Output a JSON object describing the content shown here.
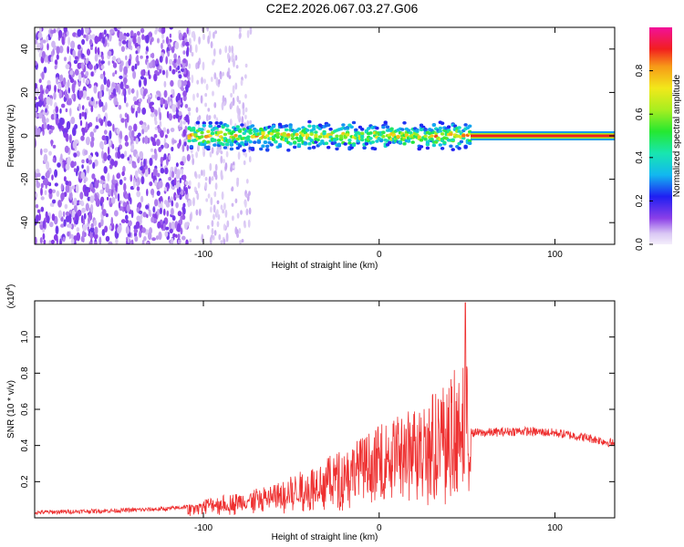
{
  "title": "C2E2.2026.067.03.27.G06",
  "chart_data": [
    {
      "type": "heatmap",
      "xlabel": "Height of straight line (km)",
      "ylabel": "Frequency (Hz)",
      "xlim": [
        -196,
        134
      ],
      "ylim": [
        -50,
        50
      ],
      "xticks": [
        -100,
        0,
        100
      ],
      "yticks": [
        -40,
        -20,
        0,
        20,
        40
      ],
      "xtick_labels": [
        "-100",
        "0",
        "100"
      ],
      "ytick_labels": [
        "-40",
        "-20",
        "0",
        "20",
        "40"
      ],
      "colorbar": {
        "label": "Normalized spectral amplitude",
        "range": [
          0.0,
          1.0
        ],
        "ticks": [
          0.0,
          0.2,
          0.4,
          0.6,
          0.8
        ],
        "tick_labels": [
          "0.0",
          "0.2",
          "0.4",
          "0.6",
          "0.8"
        ],
        "colormap": "rainbow (violet-blue-cyan-green-yellow-red-magenta)"
      },
      "features": [
        {
          "x_range": [
            -196,
            -108
          ],
          "description_value": "scattered noise up to ~0.15 across all frequencies"
        },
        {
          "x_range": [
            -108,
            52
          ],
          "frequency_center": 0,
          "frequency_halfwidth": 5,
          "amplitude_range": [
            0.2,
            0.9
          ]
        },
        {
          "x_range": [
            52,
            134
          ],
          "frequency_center": 0,
          "amplitude": 0.9
        }
      ],
      "grid": false
    },
    {
      "type": "line",
      "xlabel": "Height of straight line (km)",
      "ylabel": "SNR (10 * v/v)",
      "multiplier_label": "(x10",
      "multiplier_exponent": "4",
      "multiplier_close": ")",
      "xlim": [
        -196,
        134
      ],
      "ylim": [
        0.0,
        1.2
      ],
      "xticks": [
        -100,
        0,
        100
      ],
      "yticks": [
        0.2,
        0.4,
        0.6,
        0.8,
        1.0
      ],
      "xtick_labels": [
        "-100",
        "0",
        "100"
      ],
      "ytick_labels": [
        "0.2",
        "0.4",
        "0.6",
        "0.8",
        "1.0"
      ],
      "series_color": "#ee3030",
      "envelope": {
        "x": [
          -196,
          -150,
          -120,
          -100,
          -80,
          -60,
          -40,
          -20,
          0,
          20,
          30,
          40,
          45,
          48,
          50,
          52,
          60,
          80,
          100,
          120,
          134
        ],
        "y": [
          0.03,
          0.04,
          0.05,
          0.07,
          0.09,
          0.12,
          0.18,
          0.25,
          0.33,
          0.4,
          0.45,
          0.5,
          0.55,
          0.6,
          0.55,
          0.47,
          0.47,
          0.48,
          0.47,
          0.44,
          0.41
        ]
      },
      "peak": {
        "x": 49,
        "y": 1.19
      },
      "grid": false
    }
  ]
}
